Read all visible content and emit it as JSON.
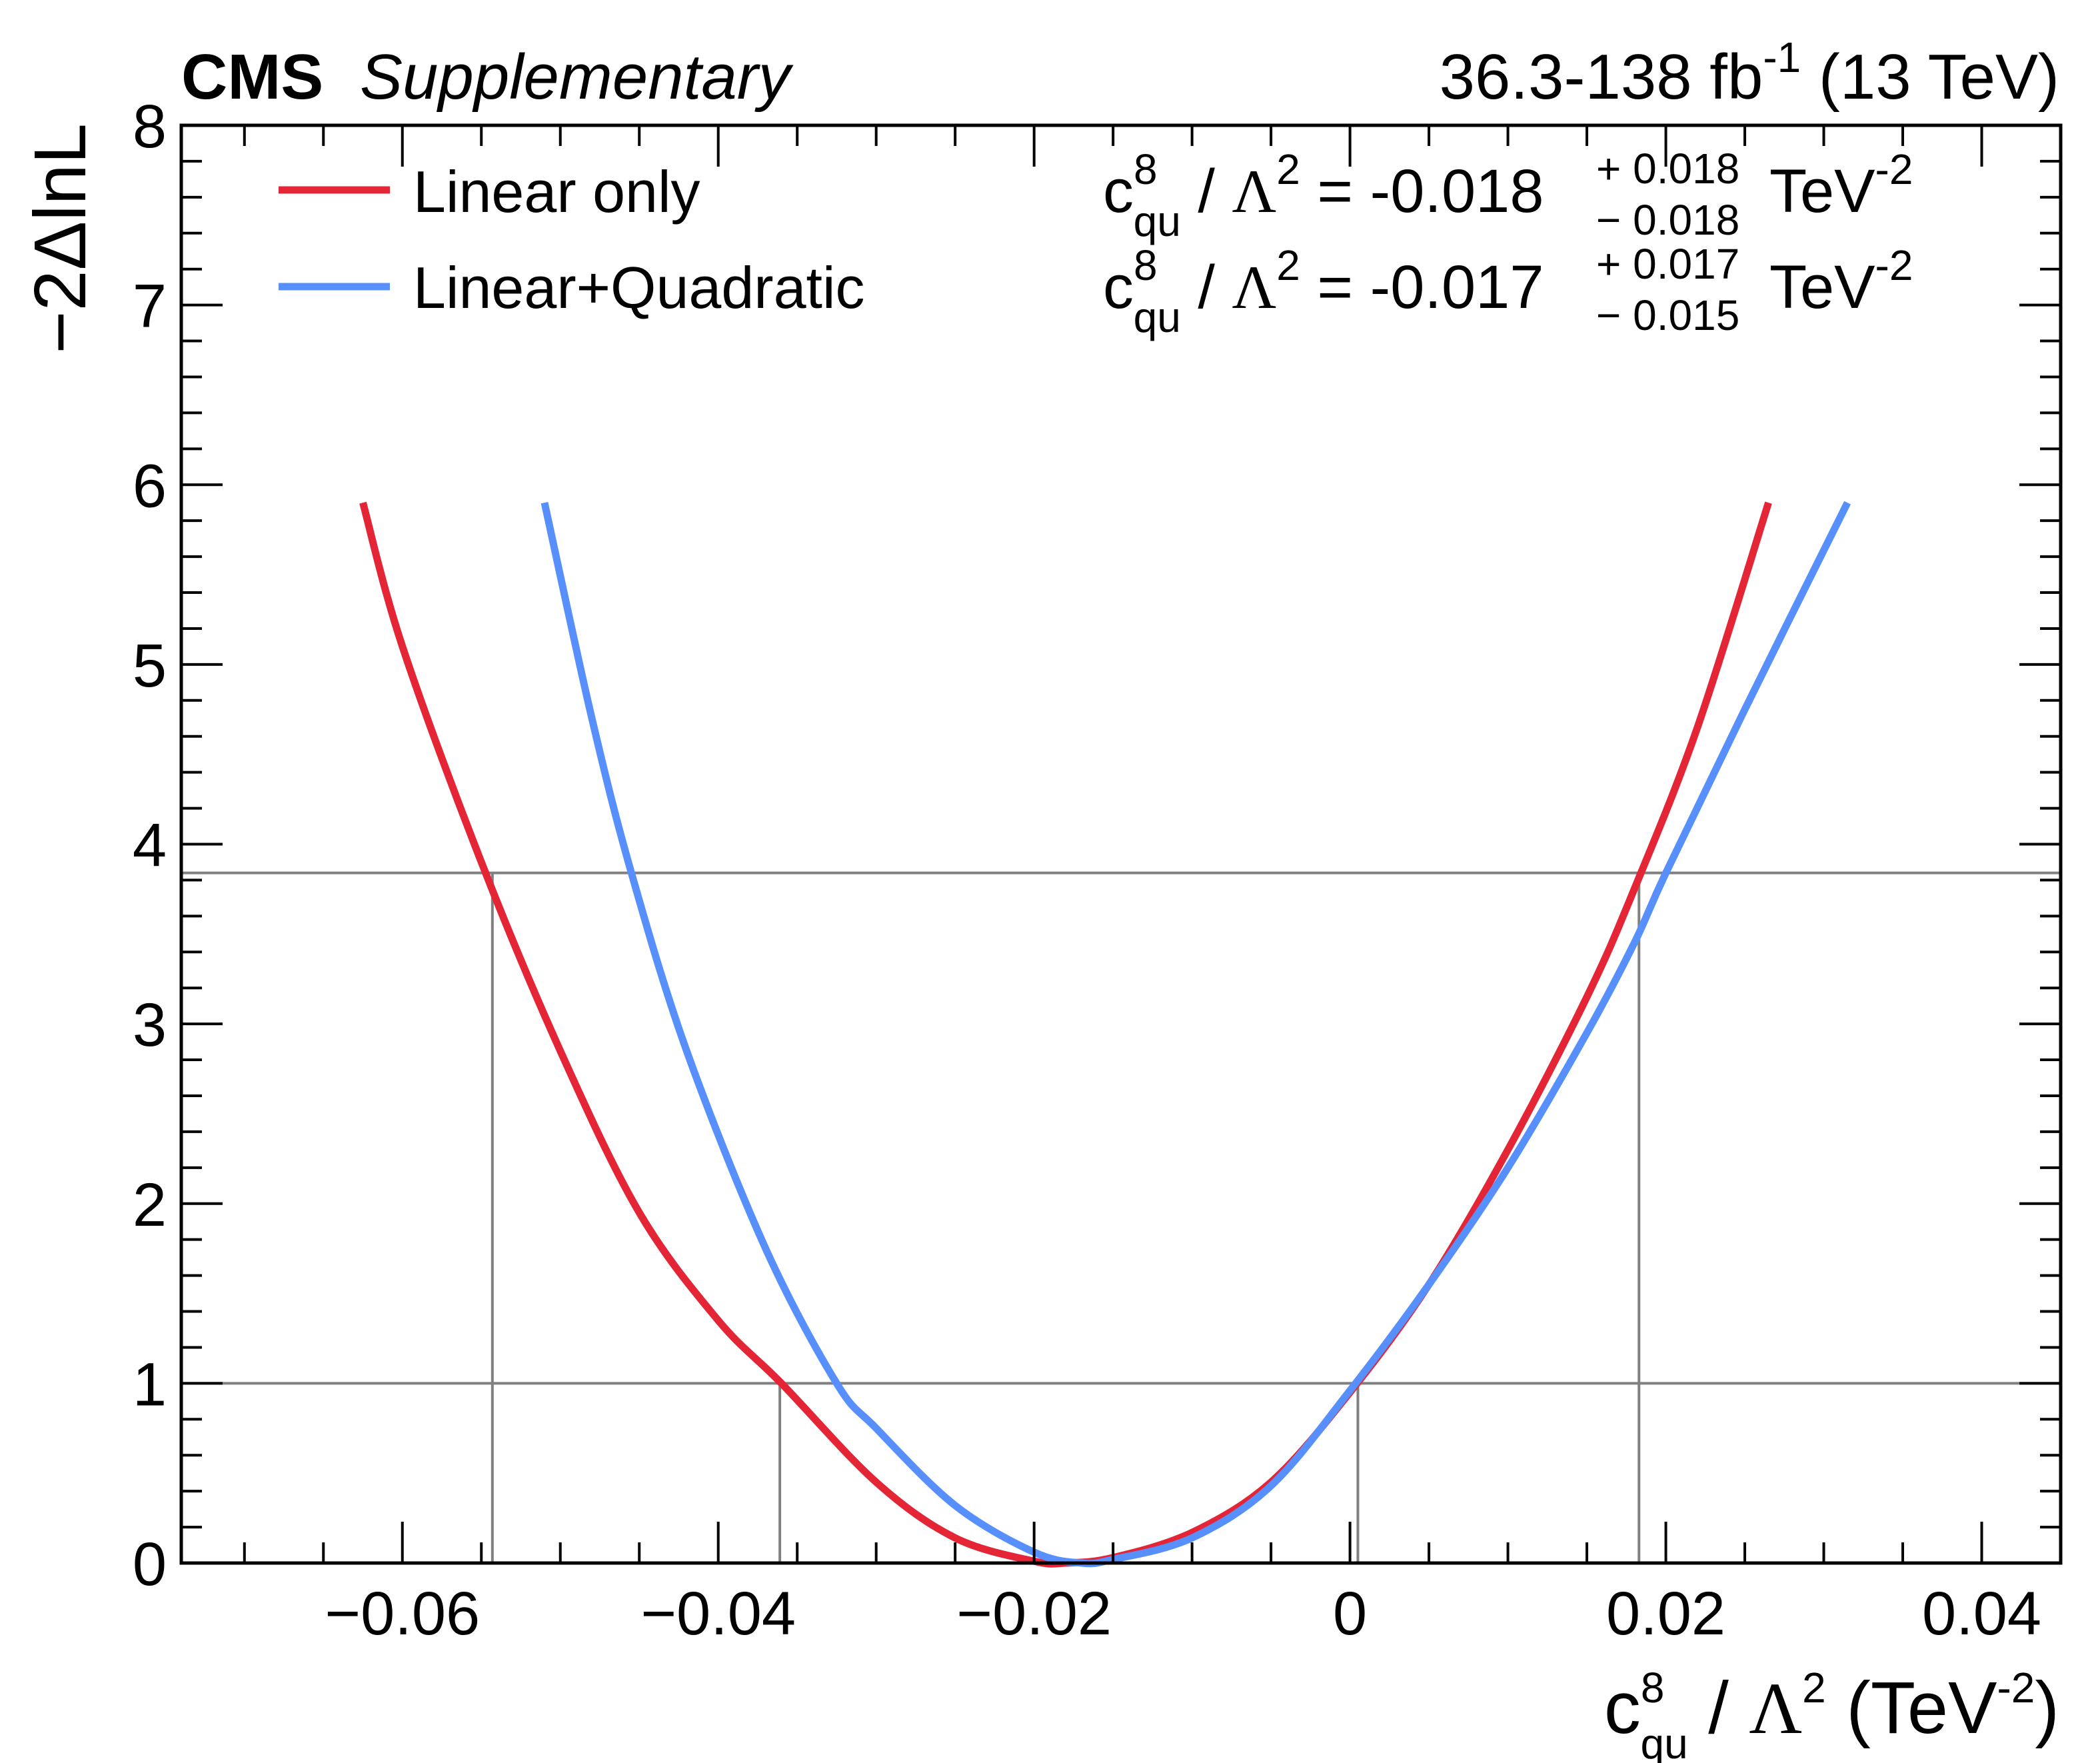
{
  "header": {
    "experiment": "CMS",
    "label": "Supplementary",
    "lumi": "36.3-138 fb",
    "lumi_exp": "-1",
    "energy": "(13 TeV)"
  },
  "colors": {
    "linear": "#e42536",
    "quadratic": "#5790fc",
    "reference": "#808080"
  },
  "legend": [
    {
      "label": "Linear only",
      "color": "#e42536"
    },
    {
      "label": "Linear+Quadratic",
      "color": "#5790fc"
    }
  ],
  "results": [
    {
      "coef": "c",
      "sup": "8",
      "sub": "qu",
      "slash": " / ",
      "lambda": "Λ",
      "lambda_exp": "2",
      "eq": " = -0.018",
      "up": "+ 0.018",
      "down": "− 0.018",
      "unit": "TeV",
      "unit_exp": "-2",
      "color": "#e42536"
    },
    {
      "coef": "c",
      "sup": "8",
      "sub": "qu",
      "slash": " / ",
      "lambda": "Λ",
      "lambda_exp": "2",
      "eq": " = -0.017",
      "up": "+ 0.017",
      "down": "− 0.015",
      "unit": "TeV",
      "unit_exp": "-2",
      "color": "#5790fc"
    }
  ],
  "axes": {
    "xlabel": {
      "coef": "c",
      "sup": "8",
      "sub": "qu",
      "slash": " / ",
      "lambda": "Λ",
      "lambda_exp": "2",
      "unit_open": " (TeV",
      "unit_exp": "-2",
      "unit_close": ")"
    },
    "ylabel": "−2ΔlnL",
    "xticks": [
      "−0.06",
      "−0.04",
      "−0.02",
      "0",
      "0.02",
      "0.04"
    ],
    "yticks": [
      "0",
      "1",
      "2",
      "3",
      "4",
      "5",
      "6",
      "7",
      "8"
    ]
  },
  "chart_data": {
    "type": "line",
    "title": "",
    "xlabel": "c8qu / Λ2 (TeV-2)",
    "ylabel": "−2ΔlnL",
    "xlim": [
      -0.074,
      0.045
    ],
    "ylim": [
      0,
      8
    ],
    "xtick_values": [
      -0.06,
      -0.04,
      -0.02,
      0,
      0.02,
      0.04
    ],
    "ytick_values": [
      0,
      1,
      2,
      3,
      4,
      5,
      6,
      7,
      8
    ],
    "reference_lines": {
      "horizontal": [
        1.0,
        3.84
      ],
      "vertical_1sigma": [
        -0.0361,
        0.0005
      ],
      "vertical_2sigma": [
        -0.0543,
        0.0183
      ]
    },
    "series": [
      {
        "name": "Linear only",
        "color": "#e42536",
        "x": [
          -0.0625,
          -0.06,
          -0.055,
          -0.05,
          -0.045,
          -0.04,
          -0.036,
          -0.03,
          -0.025,
          -0.02,
          -0.018,
          -0.015,
          -0.01,
          -0.005,
          0,
          0.005,
          0.01,
          0.015,
          0.018,
          0.022,
          0.0265
        ],
        "y": [
          5.9,
          5.1,
          3.9,
          2.85,
          1.95,
          1.35,
          1.0,
          0.45,
          0.14,
          0.01,
          0.0,
          0.03,
          0.17,
          0.45,
          0.95,
          1.55,
          2.3,
          3.15,
          3.75,
          4.65,
          5.9
        ]
      },
      {
        "name": "Linear+Quadratic",
        "color": "#5790fc",
        "x": [
          -0.051,
          -0.048,
          -0.0455,
          -0.042,
          -0.037,
          -0.0325,
          -0.03,
          -0.025,
          -0.02,
          -0.017,
          -0.015,
          -0.01,
          -0.005,
          0,
          0.005,
          0.01,
          0.015,
          0.018,
          0.02,
          0.025,
          0.0315
        ],
        "y": [
          5.9,
          4.7,
          3.84,
          2.85,
          1.75,
          1.0,
          0.75,
          0.32,
          0.06,
          0.0,
          0.02,
          0.14,
          0.43,
          0.96,
          1.55,
          2.2,
          2.95,
          3.45,
          3.84,
          4.75,
          5.9
        ]
      }
    ],
    "annotations": [
      "c8qu / Λ2 = -0.018 +0.018 -0.018 TeV-2",
      "c8qu / Λ2 = -0.017 +0.017 -0.015 TeV-2"
    ]
  }
}
